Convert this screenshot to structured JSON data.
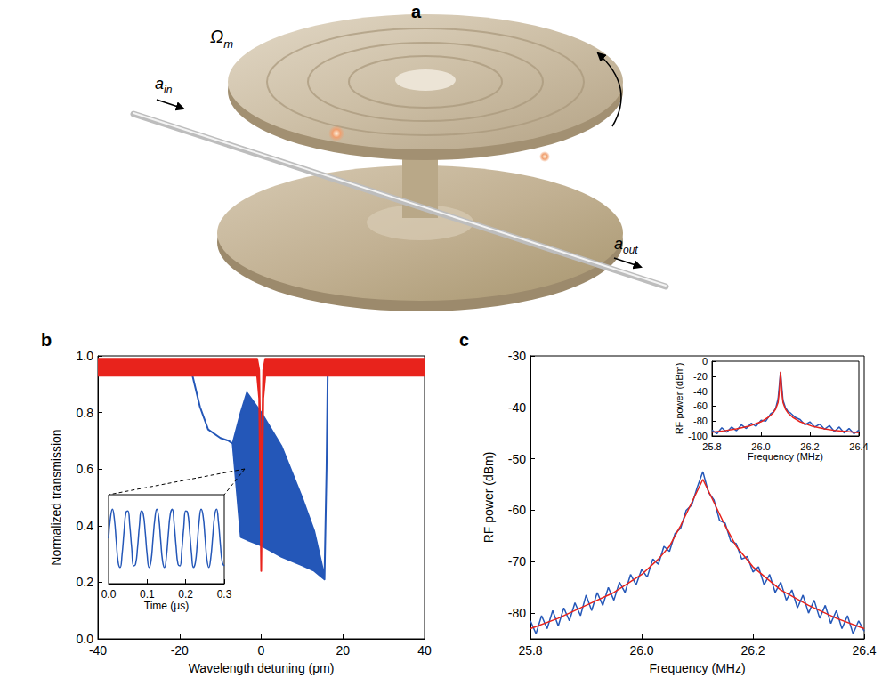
{
  "diagram": {
    "panel": "a",
    "mode_label": {
      "text": "Ω",
      "sub": "m"
    },
    "input_label": {
      "text": "a",
      "sub": "in"
    },
    "output_label": {
      "text": "a",
      "sub": "out"
    }
  },
  "chart_data": [
    {
      "panel": "b",
      "type": "line",
      "x_label": "Wavelength detuning (pm)",
      "y_label": "Normalized transmission",
      "xlim": [
        -40,
        40
      ],
      "xticks": [
        -40,
        -20,
        0,
        20,
        40
      ],
      "ylim": [
        0,
        1
      ],
      "yticks": [
        {
          "value": 0,
          "label": "0.0"
        },
        0.2,
        0.4,
        0.6,
        0.8,
        {
          "value": 1,
          "label": "1.0"
        }
      ],
      "grid": false,
      "series": [
        {
          "type": "band",
          "color": "#2457b8",
          "x": [
            -40,
            -30,
            -20,
            -17,
            -15,
            -13,
            -10,
            -8,
            -7,
            -5,
            -3.5,
            0,
            5,
            10,
            13,
            15.5,
            16,
            16.3,
            20,
            30,
            40
          ],
          "upper": [
            0.96,
            0.96,
            0.96,
            0.94,
            0.82,
            0.74,
            0.71,
            0.7,
            0.69,
            0.8,
            0.87,
            0.8,
            0.68,
            0.5,
            0.38,
            0.22,
            0.6,
            0.96,
            0.96,
            0.96,
            0.96
          ],
          "lower": [
            0.96,
            0.96,
            0.96,
            0.94,
            0.82,
            0.74,
            0.71,
            0.7,
            0.69,
            0.36,
            0.35,
            0.33,
            0.29,
            0.26,
            0.24,
            0.21,
            0.6,
            0.96,
            0.96,
            0.96,
            0.96
          ]
        },
        {
          "type": "band",
          "color": "#e8231c",
          "x": [
            -40,
            -1,
            -0.5,
            -0.2,
            0,
            0.2,
            0.5,
            1,
            40
          ],
          "upper": [
            0.99,
            0.99,
            0.95,
            0.7,
            0.24,
            0.7,
            0.95,
            0.99,
            0.99
          ],
          "lower": [
            0.93,
            0.93,
            0.85,
            0.5,
            0.24,
            0.5,
            0.85,
            0.93,
            0.93
          ]
        }
      ],
      "inset": {
        "type": "line",
        "x_label": "Time (μs)",
        "xlim": [
          0,
          0.3
        ],
        "xticks": [
          {
            "value": 0,
            "label": "0.0"
          },
          0.1,
          0.2,
          0.3
        ],
        "ylim": [
          0.2,
          0.75
        ],
        "tick_labels": "x",
        "grid": false,
        "series": [
          {
            "color": "#2457b8",
            "x": [
              0,
              0.005,
              0.01,
              0.015,
              0.02,
              0.025,
              0.03,
              0.035,
              0.04,
              0.045,
              0.05,
              0.055,
              0.06,
              0.065,
              0.07,
              0.075,
              0.08,
              0.085,
              0.09,
              0.095,
              0.1,
              0.105,
              0.11,
              0.115,
              0.12,
              0.125,
              0.13,
              0.135,
              0.14,
              0.145,
              0.15,
              0.155,
              0.16,
              0.165,
              0.17,
              0.175,
              0.18,
              0.185,
              0.19,
              0.195,
              0.2,
              0.205,
              0.21,
              0.215,
              0.22,
              0.225,
              0.23,
              0.235,
              0.24,
              0.245,
              0.25,
              0.255,
              0.26,
              0.265,
              0.27,
              0.275,
              0.28,
              0.285,
              0.29,
              0.295,
              0.3
            ],
            "values": [
              0.48,
              0.61,
              0.66,
              0.6,
              0.46,
              0.33,
              0.3,
              0.38,
              0.52,
              0.64,
              0.65,
              0.56,
              0.42,
              0.31,
              0.32,
              0.42,
              0.56,
              0.65,
              0.63,
              0.52,
              0.38,
              0.3,
              0.34,
              0.47,
              0.6,
              0.66,
              0.61,
              0.47,
              0.34,
              0.3,
              0.37,
              0.51,
              0.63,
              0.66,
              0.57,
              0.43,
              0.32,
              0.31,
              0.41,
              0.55,
              0.65,
              0.64,
              0.53,
              0.39,
              0.3,
              0.33,
              0.45,
              0.59,
              0.66,
              0.62,
              0.49,
              0.35,
              0.3,
              0.36,
              0.49,
              0.62,
              0.66,
              0.58,
              0.44,
              0.33,
              0.31
            ]
          }
        ]
      }
    },
    {
      "panel": "c",
      "type": "line",
      "x_label": "Frequency (MHz)",
      "y_label": "RF power (dBm)",
      "xlim": [
        25.8,
        26.4
      ],
      "xticks": [
        25.8,
        {
          "value": 26,
          "label": "26.0"
        },
        26.2,
        26.4
      ],
      "ylim": [
        -85,
        -30
      ],
      "yticks": [
        -30,
        -40,
        -50,
        -60,
        -70,
        -80
      ],
      "grid": false,
      "series": [
        {
          "color": "#2457b8",
          "x": [
            25.8,
            25.81,
            25.82,
            25.83,
            25.84,
            25.85,
            25.86,
            25.87,
            25.88,
            25.89,
            25.9,
            25.91,
            25.92,
            25.93,
            25.94,
            25.95,
            25.96,
            25.97,
            25.98,
            25.99,
            26,
            26.01,
            26.02,
            26.03,
            26.04,
            26.05,
            26.06,
            26.07,
            26.08,
            26.09,
            26.1,
            26.11,
            26.12,
            26.13,
            26.14,
            26.15,
            26.16,
            26.17,
            26.18,
            26.19,
            26.2,
            26.21,
            26.22,
            26.23,
            26.24,
            26.25,
            26.26,
            26.27,
            26.28,
            26.29,
            26.3,
            26.31,
            26.32,
            26.33,
            26.34,
            26.35,
            26.36,
            26.37,
            26.38,
            26.39,
            26.4
          ],
          "values": [
            -81.5,
            -84,
            -80.5,
            -83,
            -79.5,
            -82.5,
            -79,
            -81.5,
            -78,
            -80.5,
            -76.5,
            -79.5,
            -76,
            -78.5,
            -75,
            -77.5,
            -74,
            -76,
            -72.5,
            -74.5,
            -71.5,
            -73,
            -69.5,
            -70.5,
            -67,
            -68,
            -64.5,
            -63.5,
            -60,
            -59,
            -55.5,
            -52.5,
            -56.5,
            -58,
            -62,
            -62.5,
            -66,
            -66.5,
            -69.5,
            -69,
            -72,
            -71,
            -74.5,
            -72.5,
            -76,
            -74,
            -77.5,
            -75.5,
            -79,
            -76.5,
            -80,
            -77.5,
            -81,
            -78.5,
            -82,
            -79.5,
            -83,
            -80.5,
            -84,
            -81.5,
            -83.5
          ]
        },
        {
          "color": "#e8231c",
          "x": [
            25.8,
            25.85,
            25.9,
            25.95,
            26,
            26.03,
            26.05,
            26.07,
            26.09,
            26.11,
            26.13,
            26.15,
            26.17,
            26.2,
            26.25,
            26.3,
            26.35,
            26.4
          ],
          "values": [
            -83,
            -81,
            -78.5,
            -76,
            -72.5,
            -69.5,
            -67,
            -63,
            -58.5,
            -54,
            -58.5,
            -63,
            -67,
            -71,
            -75.5,
            -78.5,
            -81,
            -83
          ]
        }
      ],
      "inset": {
        "type": "line",
        "x_label": "Frequency (MHz)",
        "y_label": "RF power (dBm)",
        "xlim": [
          25.8,
          26.4
        ],
        "xticks": [
          25.8,
          {
            "value": 26,
            "label": "26.0"
          },
          26.2,
          26.4
        ],
        "ylim": [
          -100,
          0
        ],
        "yticks": [
          0,
          -20,
          -40,
          -60,
          -80,
          -100
        ],
        "grid": false,
        "series": [
          {
            "color": "#2457b8",
            "x": [
              25.8,
              25.82,
              25.84,
              25.86,
              25.88,
              25.9,
              25.92,
              25.94,
              25.96,
              25.98,
              26,
              26.02,
              26.04,
              26.05,
              26.06,
              26.07,
              26.08,
              26.09,
              26.1,
              26.11,
              26.12,
              26.14,
              26.16,
              26.18,
              26.2,
              26.22,
              26.24,
              26.26,
              26.28,
              26.3,
              26.32,
              26.34,
              26.36,
              26.38,
              26.4
            ],
            "values": [
              -92,
              -97,
              -89,
              -95,
              -88,
              -93,
              -85,
              -90,
              -83,
              -87,
              -79,
              -80,
              -70,
              -68,
              -63,
              -50,
              -15,
              -52,
              -62,
              -67,
              -69,
              -75,
              -78,
              -85,
              -81,
              -88,
              -84,
              -91,
              -86,
              -94,
              -88,
              -96,
              -90,
              -97,
              -92
            ]
          },
          {
            "color": "#e8231c",
            "x": [
              25.8,
              25.85,
              25.9,
              25.95,
              26,
              26.03,
              26.05,
              26.06,
              26.07,
              26.075,
              26.08,
              26.085,
              26.09,
              26.1,
              26.11,
              26.13,
              26.16,
              26.21,
              26.26,
              26.31,
              26.4
            ],
            "values": [
              -95,
              -93,
              -90.5,
              -87,
              -81,
              -75,
              -69,
              -64,
              -55,
              -40,
              -14,
              -40,
              -55,
              -64,
              -69,
              -75,
              -81,
              -87,
              -90.5,
              -93,
              -95.5
            ]
          }
        ]
      }
    }
  ]
}
